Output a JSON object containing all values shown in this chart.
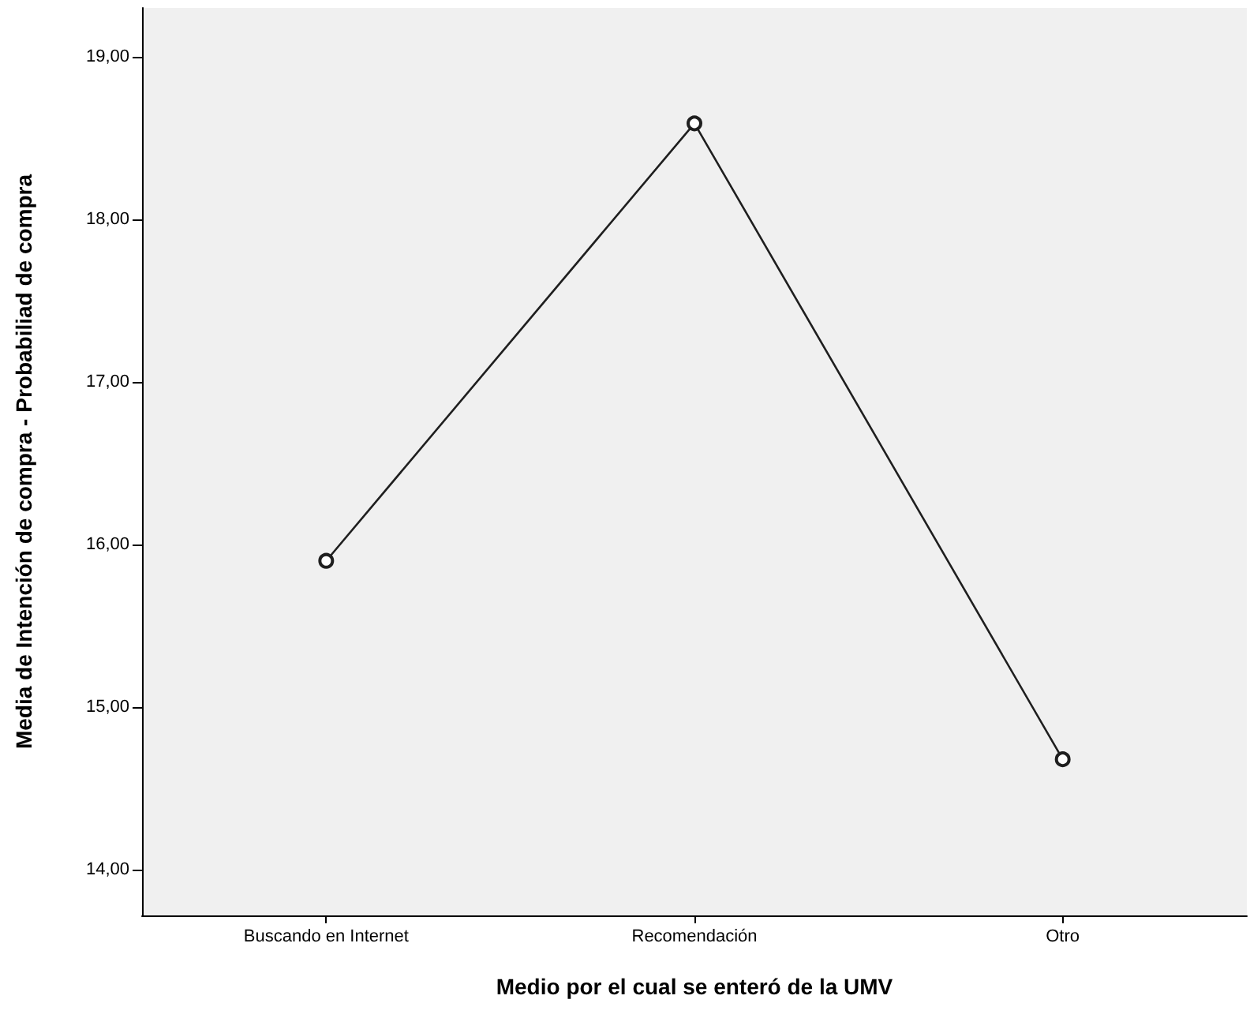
{
  "chart_data": {
    "type": "line",
    "xlabel": "Medio por el cual se enteró de la UMV",
    "ylabel": "Media de Intención de compra - Probabiliad de compra",
    "categories": [
      "Buscando en Internet",
      "Recomendación",
      "Otro"
    ],
    "series": [
      {
        "color": "#1f1f1f",
        "values": [
          15.9,
          18.59,
          14.68
        ]
      }
    ],
    "ylim": [
      13.72,
      19.3
    ],
    "yticks": [
      {
        "value": 14,
        "label": "14,00"
      },
      {
        "value": 15,
        "label": "15,00"
      },
      {
        "value": 16,
        "label": "16,00"
      },
      {
        "value": 17,
        "label": "17,00"
      },
      {
        "value": 18,
        "label": "18,00"
      },
      {
        "value": 19,
        "label": "19,00"
      }
    ],
    "grid": false,
    "marker": "circle",
    "line_style": "solid"
  }
}
